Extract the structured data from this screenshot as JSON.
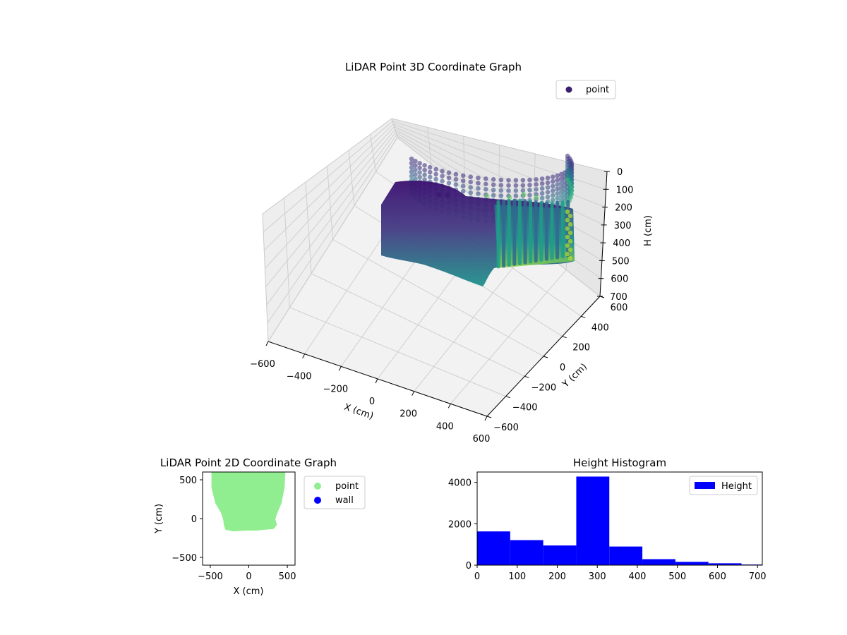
{
  "chart_data": [
    {
      "type": "scatter3d",
      "title": "LiDAR Point 3D Coordinate Graph",
      "xlabel": "X (cm)",
      "ylabel": "Y (cm)",
      "zlabel": "H (cm)",
      "xlim": [
        -600,
        600
      ],
      "ylim": [
        -600,
        600
      ],
      "zlim": [
        0,
        700
      ],
      "z_inverted": true,
      "x_ticks": [
        "−600",
        "−400",
        "−200",
        "0",
        "200",
        "400",
        "600"
      ],
      "y_ticks": [
        "−600",
        "−400",
        "−200",
        "0",
        "200",
        "400",
        "600"
      ],
      "z_ticks": [
        "0",
        "100",
        "200",
        "300",
        "400",
        "500",
        "600",
        "700"
      ],
      "colormap": "viridis",
      "grid": true,
      "legend": {
        "position": "top-right",
        "entries": [
          {
            "name": "point",
            "color": "#3b1e6e"
          }
        ]
      },
      "series": [
        {
          "name": "point",
          "description_values": {
            "ring_radius_cm_approx": 450,
            "height_range_cm": [
              0,
              700
            ]
          }
        }
      ]
    },
    {
      "type": "scatter",
      "title": "LiDAR Point 2D Coordinate Graph",
      "xlabel": "X (cm)",
      "ylabel": "Y (cm)",
      "xlim": [
        -600,
        600
      ],
      "ylim": [
        -600,
        600
      ],
      "x_ticks": [
        "−500",
        "0",
        "500"
      ],
      "y_ticks": [
        "−500",
        "0",
        "500"
      ],
      "legend": {
        "position": "right-outside",
        "entries": [
          {
            "name": "point",
            "color": "#90ee90"
          },
          {
            "name": "wall",
            "color": "#0000ff"
          }
        ]
      },
      "series": [
        {
          "name": "point",
          "color": "#90ee90",
          "outline": [
            [
              -480,
              600
            ],
            [
              -480,
              400
            ],
            [
              -430,
              200
            ],
            [
              -360,
              80
            ],
            [
              -330,
              0
            ],
            [
              -320,
              -80
            ],
            [
              -300,
              -140
            ],
            [
              -200,
              -160
            ],
            [
              -50,
              -150
            ],
            [
              100,
              -150
            ],
            [
              200,
              -140
            ],
            [
              320,
              -130
            ],
            [
              360,
              -80
            ],
            [
              340,
              -10
            ],
            [
              360,
              60
            ],
            [
              420,
              200
            ],
            [
              460,
              400
            ],
            [
              470,
              600
            ]
          ]
        },
        {
          "name": "wall",
          "color": "#0000ff",
          "points": []
        }
      ]
    },
    {
      "type": "bar",
      "title": "Height Histogram",
      "xlim": [
        0,
        712
      ],
      "ylim": [
        0,
        4500
      ],
      "x_ticks": [
        "0",
        "100",
        "200",
        "300",
        "400",
        "500",
        "600",
        "700"
      ],
      "y_ticks": [
        "0",
        "2000",
        "4000"
      ],
      "color": "#0000ff",
      "legend": {
        "position": "top-right",
        "entries": [
          {
            "name": "Height",
            "color": "#0000ff"
          }
        ]
      },
      "bin_edges": [
        0,
        82.5,
        165,
        247.5,
        330,
        412.5,
        495,
        577.5,
        660,
        712
      ],
      "series": [
        {
          "name": "Height",
          "values": [
            1630,
            1210,
            950,
            4280,
            900,
            290,
            160,
            90,
            30
          ]
        }
      ]
    }
  ]
}
